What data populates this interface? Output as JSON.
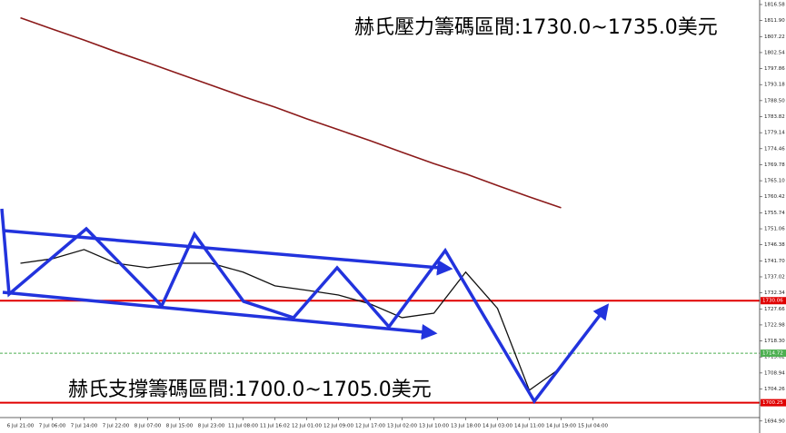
{
  "chart_data": {
    "type": "line",
    "annotations": [
      "赫氏壓力籌碼區間:1730.0~1735.0美元",
      "赫氏支撐籌碼區間:1700.0~1705.0美元"
    ],
    "categories": [
      "6 Jul 21:00",
      "7 Jul 06:00",
      "7 Jul 14:00",
      "7 Jul 22:00",
      "8 Jul 07:00",
      "8 Jul 15:00",
      "8 Jul 23:00",
      "11 Jul 08:00",
      "11 Jul 16:02",
      "12 Jul 01:00",
      "12 Jul 09:00",
      "12 Jul 17:00",
      "13 Jul 02:00",
      "13 Jul 10:00",
      "13 Jul 18:00",
      "14 Jul 03:00",
      "14 Jul 11:00",
      "14 Jul 19:00",
      "15 Jul 04:00"
    ],
    "series": [
      {
        "color": "#111111",
        "values": [
          1741.0,
          1742.3,
          1745.0,
          1741.0,
          1739.7,
          1741.0,
          1741.0,
          1738.4,
          1734.4,
          1733.1,
          1731.7,
          1729.1,
          1725.1,
          1726.4,
          1738.4,
          1727.8,
          1703.9,
          1710.5,
          null
        ]
      },
      {
        "color": "#8b1a1a",
        "values": [
          1812.7,
          1809.4,
          1806.2,
          1802.8,
          1799.6,
          1796.3,
          1793.0,
          1789.7,
          1786.6,
          1783.2,
          1780.0,
          1776.8,
          1773.4,
          1770.1,
          1767.1,
          1763.7,
          1760.4,
          1757.2,
          null
        ]
      }
    ],
    "levels": [
      {
        "value": 1730.06,
        "color": "#e00000"
      },
      {
        "value": 1700.25,
        "color": "#e00000"
      },
      {
        "value": 1714.72,
        "color": "#4caf50"
      }
    ],
    "ylim": [
      1691.4,
      1817.9
    ],
    "yticks": [
      {
        "value": 1694.9,
        "label": "1694.90"
      },
      1699.58,
      1704.26,
      1708.94,
      1713.62,
      {
        "value": 1718.3,
        "label": "1718.30"
      },
      1722.98,
      1727.66,
      1732.34,
      1737.02,
      {
        "value": 1741.7,
        "label": "1741.70"
      },
      1746.38,
      1751.06,
      1755.74,
      1760.42,
      {
        "value": 1765.1,
        "label": "1765.10"
      },
      1769.78,
      1774.46,
      1779.14,
      1783.82,
      {
        "value": 1788.5,
        "label": "1788.50"
      },
      1793.18,
      1797.86,
      1802.54,
      1807.22,
      {
        "value": 1811.9,
        "label": "1811.90"
      },
      1816.58
    ]
  }
}
